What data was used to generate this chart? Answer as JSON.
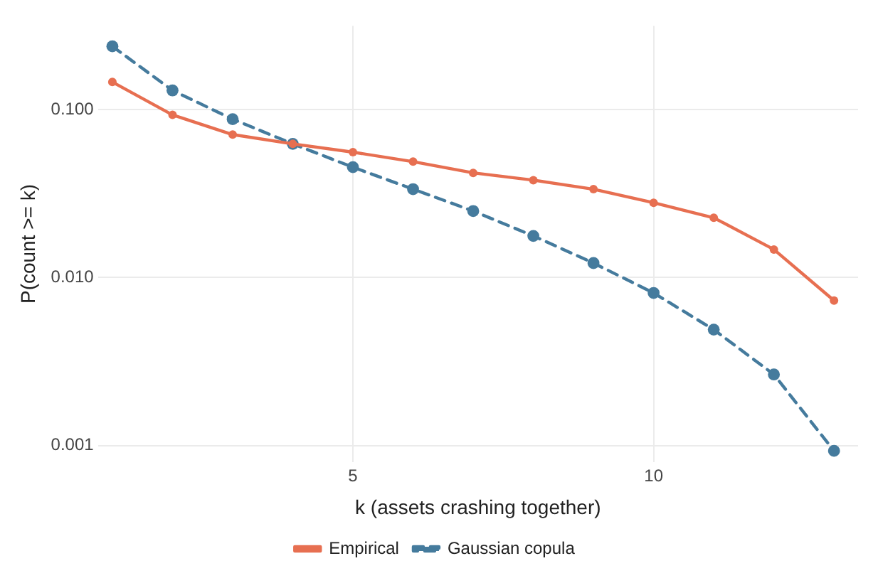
{
  "chart_data": {
    "type": "line",
    "xlabel": "k (assets crashing together)",
    "ylabel": "P(count >= k)",
    "log": "y",
    "grid": true,
    "legend": "bottom",
    "marker": "circle",
    "xlim": [
      0.76,
      13.4
    ],
    "xticks": [
      5,
      10
    ],
    "ylim": [
      0.0008,
      0.315
    ],
    "yticks": [
      {
        "value": 0.1,
        "label": "0.100"
      },
      {
        "value": 0.01,
        "label": "0.010"
      },
      {
        "value": 0.001,
        "label": "0.001"
      }
    ],
    "x": [
      1,
      2,
      3,
      4,
      5,
      6,
      7,
      8,
      9,
      10,
      11,
      12,
      13
    ],
    "series": [
      {
        "name": "Empirical",
        "color": "#e76f51",
        "line_style": "solid",
        "values": [
          0.146,
          0.093,
          0.071,
          0.0625,
          0.0558,
          0.049,
          0.042,
          0.038,
          0.0336,
          0.0279,
          0.0227,
          0.0147,
          0.0073
        ]
      },
      {
        "name": "Gaussian copula",
        "color": "#457b9d",
        "line_style": "dashed",
        "values": [
          0.238,
          0.13,
          0.0877,
          0.0625,
          0.0454,
          0.0336,
          0.0249,
          0.0177,
          0.0122,
          0.0081,
          0.0049,
          0.00265,
          0.00093
        ]
      }
    ]
  }
}
